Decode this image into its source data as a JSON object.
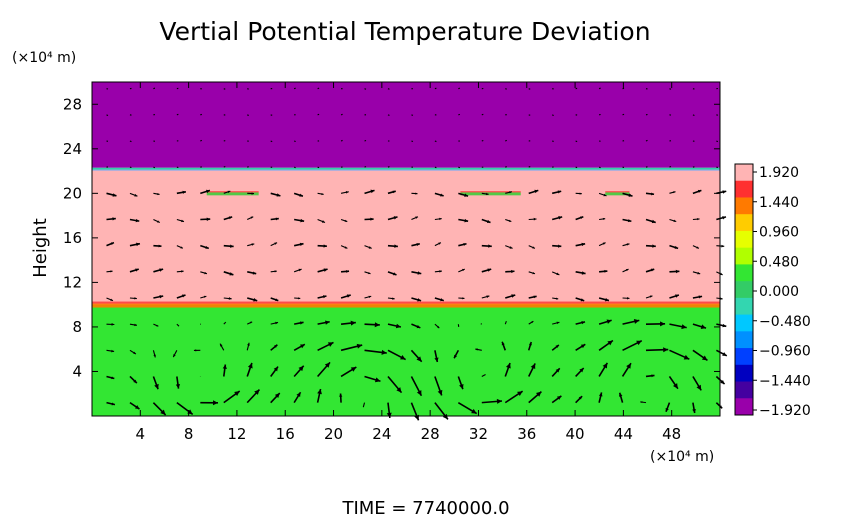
{
  "chart_data": {
    "type": "heatmap",
    "title": "Vertial Potential Temperature Deviation",
    "xlabel": "",
    "ylabel": "Height",
    "x_unit": "(×10⁴ m)",
    "y_unit": "(×10⁴ m)",
    "xlim": [
      0,
      52
    ],
    "ylim": [
      0,
      30
    ],
    "x_ticks": [
      4,
      8,
      12,
      16,
      20,
      24,
      28,
      32,
      36,
      40,
      44,
      48
    ],
    "y_ticks": [
      4,
      8,
      12,
      16,
      20,
      24,
      28
    ],
    "layers": [
      {
        "y0": 0,
        "y1": 10,
        "value": 0.0,
        "color": "#33e633"
      },
      {
        "y0": 10,
        "y1": 22.3,
        "value": 1.92,
        "color": "#ffb4b4"
      },
      {
        "y0": 22.3,
        "y1": 30,
        "value": -1.92,
        "color": "#9900aa"
      }
    ],
    "colorbar": {
      "labels": [
        "1.920",
        "1.440",
        "0.960",
        "0.480",
        "0.000",
        "−0.480",
        "−0.960",
        "−1.440",
        "−1.920"
      ],
      "colors": [
        "#ffb4b4",
        "#ff3030",
        "#ff7a00",
        "#ffcc00",
        "#e6ff00",
        "#b0ff00",
        "#33e633",
        "#33cc66",
        "#33d6b0",
        "#00c8ff",
        "#0090ff",
        "#0040ff",
        "#0000c0",
        "#4400a0",
        "#9900aa"
      ]
    },
    "vector_field": true
  },
  "footer": {
    "time_text": "TIME  =  7740000.0"
  }
}
